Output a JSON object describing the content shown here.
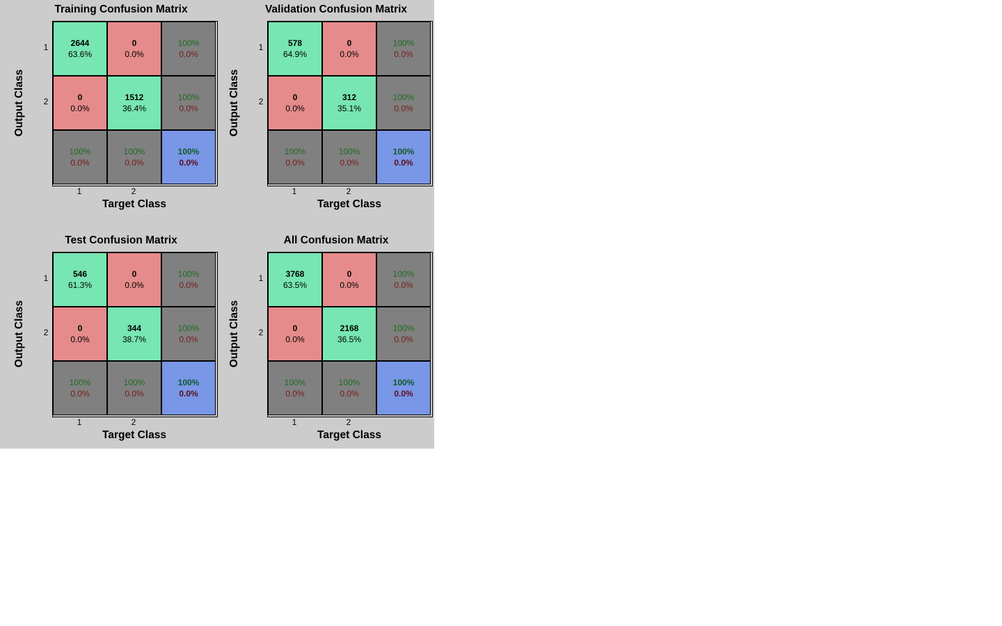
{
  "chart_data": [
    {
      "type": "table",
      "title": "Training Confusion Matrix",
      "xlabel": "Target Class",
      "ylabel": "Output Class",
      "tick_labels": [
        "1",
        "2"
      ],
      "cells": [
        [
          {
            "count": "2644",
            "pct": "63.6%"
          },
          {
            "count": "0",
            "pct": "0.0%"
          }
        ],
        [
          {
            "count": "0",
            "pct": "0.0%"
          },
          {
            "count": "1512",
            "pct": "36.4%"
          }
        ]
      ],
      "row_summary": [
        {
          "ok": "100%",
          "err": "0.0%"
        },
        {
          "ok": "100%",
          "err": "0.0%"
        }
      ],
      "col_summary": [
        {
          "ok": "100%",
          "err": "0.0%"
        },
        {
          "ok": "100%",
          "err": "0.0%"
        }
      ],
      "total": {
        "ok": "100%",
        "err": "0.0%"
      }
    },
    {
      "type": "table",
      "title": "Validation Confusion Matrix",
      "xlabel": "Target Class",
      "ylabel": "Output Class",
      "tick_labels": [
        "1",
        "2"
      ],
      "cells": [
        [
          {
            "count": "578",
            "pct": "64.9%"
          },
          {
            "count": "0",
            "pct": "0.0%"
          }
        ],
        [
          {
            "count": "0",
            "pct": "0.0%"
          },
          {
            "count": "312",
            "pct": "35.1%"
          }
        ]
      ],
      "row_summary": [
        {
          "ok": "100%",
          "err": "0.0%"
        },
        {
          "ok": "100%",
          "err": "0.0%"
        }
      ],
      "col_summary": [
        {
          "ok": "100%",
          "err": "0.0%"
        },
        {
          "ok": "100%",
          "err": "0.0%"
        }
      ],
      "total": {
        "ok": "100%",
        "err": "0.0%"
      }
    },
    {
      "type": "table",
      "title": "Test Confusion Matrix",
      "xlabel": "Target Class",
      "ylabel": "Output Class",
      "tick_labels": [
        "1",
        "2"
      ],
      "cells": [
        [
          {
            "count": "546",
            "pct": "61.3%"
          },
          {
            "count": "0",
            "pct": "0.0%"
          }
        ],
        [
          {
            "count": "0",
            "pct": "0.0%"
          },
          {
            "count": "344",
            "pct": "38.7%"
          }
        ]
      ],
      "row_summary": [
        {
          "ok": "100%",
          "err": "0.0%"
        },
        {
          "ok": "100%",
          "err": "0.0%"
        }
      ],
      "col_summary": [
        {
          "ok": "100%",
          "err": "0.0%"
        },
        {
          "ok": "100%",
          "err": "0.0%"
        }
      ],
      "total": {
        "ok": "100%",
        "err": "0.0%"
      }
    },
    {
      "type": "table",
      "title": "All Confusion Matrix",
      "xlabel": "Target Class",
      "ylabel": "Output Class",
      "tick_labels": [
        "1",
        "2"
      ],
      "cells": [
        [
          {
            "count": "3768",
            "pct": "63.5%"
          },
          {
            "count": "0",
            "pct": "0.0%"
          }
        ],
        [
          {
            "count": "0",
            "pct": "0.0%"
          },
          {
            "count": "2168",
            "pct": "36.5%"
          }
        ]
      ],
      "row_summary": [
        {
          "ok": "100%",
          "err": "0.0%"
        },
        {
          "ok": "100%",
          "err": "0.0%"
        }
      ],
      "col_summary": [
        {
          "ok": "100%",
          "err": "0.0%"
        },
        {
          "ok": "100%",
          "err": "0.0%"
        }
      ],
      "total": {
        "ok": "100%",
        "err": "0.0%"
      }
    }
  ],
  "colors": {
    "figure_background": "#cccccc",
    "correct_cell": "#77e6b3",
    "error_cell": "#e68b8b",
    "summary_cell": "#808080",
    "total_cell": "#7a96e6",
    "accuracy_text": "#1e6b1e",
    "error_text": "#7a1a1a"
  }
}
